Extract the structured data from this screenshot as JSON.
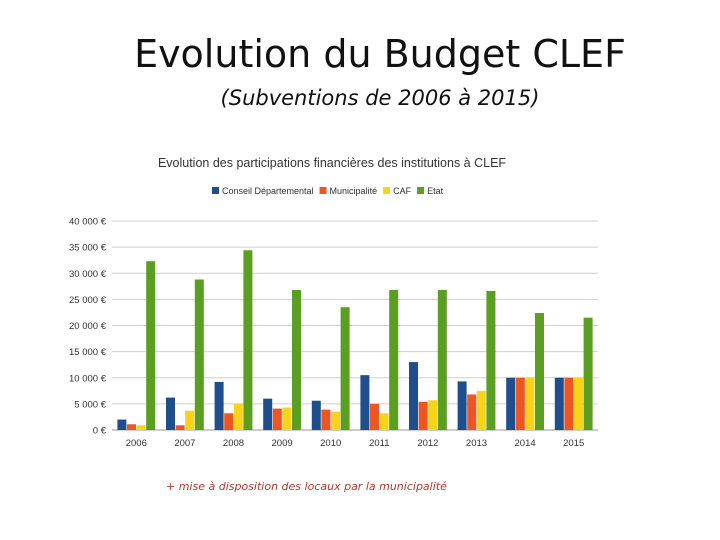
{
  "slide": {
    "title": "Evolution du Budget  CLEF",
    "subtitle": "(Subventions de 2006 à 2015)",
    "footnote": "+ mise à disposition des locaux par la municipalité"
  },
  "chart_data": {
    "type": "bar",
    "title": "Evolution des participations financières des institutions à CLEF",
    "xlabel": "",
    "ylabel": "",
    "categories": [
      "2006",
      "2007",
      "2008",
      "2009",
      "2010",
      "2011",
      "2012",
      "2013",
      "2014",
      "2015"
    ],
    "series": [
      {
        "name": "Conseil Départemental",
        "color": "#1f4e8c",
        "values": [
          2000,
          6200,
          9200,
          6000,
          5600,
          10500,
          13000,
          9300,
          10000,
          10000
        ]
      },
      {
        "name": "Municipalité",
        "color": "#ee5522",
        "values": [
          1100,
          900,
          3200,
          4100,
          3900,
          5000,
          5400,
          6800,
          10000,
          10000
        ]
      },
      {
        "name": "CAF",
        "color": "#f7d31a",
        "values": [
          900,
          3700,
          5000,
          4300,
          3500,
          3200,
          5700,
          7500,
          10000,
          10000
        ]
      },
      {
        "name": "Etat",
        "color": "#5a9e22",
        "values": [
          32300,
          28800,
          34400,
          26800,
          23500,
          26800,
          26800,
          26600,
          22400,
          21500
        ]
      }
    ],
    "ylim": [
      0,
      40000
    ],
    "yticks": [
      {
        "value": 0,
        "label": "0 €"
      },
      {
        "value": 5000,
        "label": "5 000 €"
      },
      {
        "value": 10000,
        "label": "10 000 €"
      },
      {
        "value": 15000,
        "label": "15 000 €"
      },
      {
        "value": 20000,
        "label": "20 000 €"
      },
      {
        "value": 25000,
        "label": "25 000 €"
      },
      {
        "value": 30000,
        "label": "30 000 €"
      },
      {
        "value": 35000,
        "label": "35 000 €"
      },
      {
        "value": 40000,
        "label": "40 000 €"
      }
    ],
    "grid": true,
    "legend_position": "top"
  }
}
